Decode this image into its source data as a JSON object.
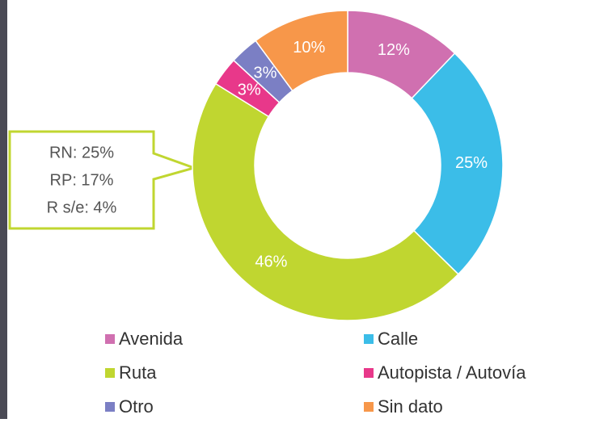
{
  "chart_data": {
    "type": "donut",
    "categories": [
      "Avenida",
      "Calle",
      "Ruta",
      "Autopista / Autovía",
      "Otro",
      "Sin dato"
    ],
    "values": [
      12,
      25,
      46,
      3,
      3,
      10
    ],
    "value_labels": [
      "12%",
      "25%",
      "46%",
      "3%",
      "3%",
      "10%"
    ],
    "colors": [
      "#d070b0",
      "#3bbde8",
      "#c0d630",
      "#e8388a",
      "#7b7fc4",
      "#f7974a"
    ],
    "annotation": [
      "RN: 25%",
      "RP: 17%",
      "R s/e: 4%"
    ]
  }
}
